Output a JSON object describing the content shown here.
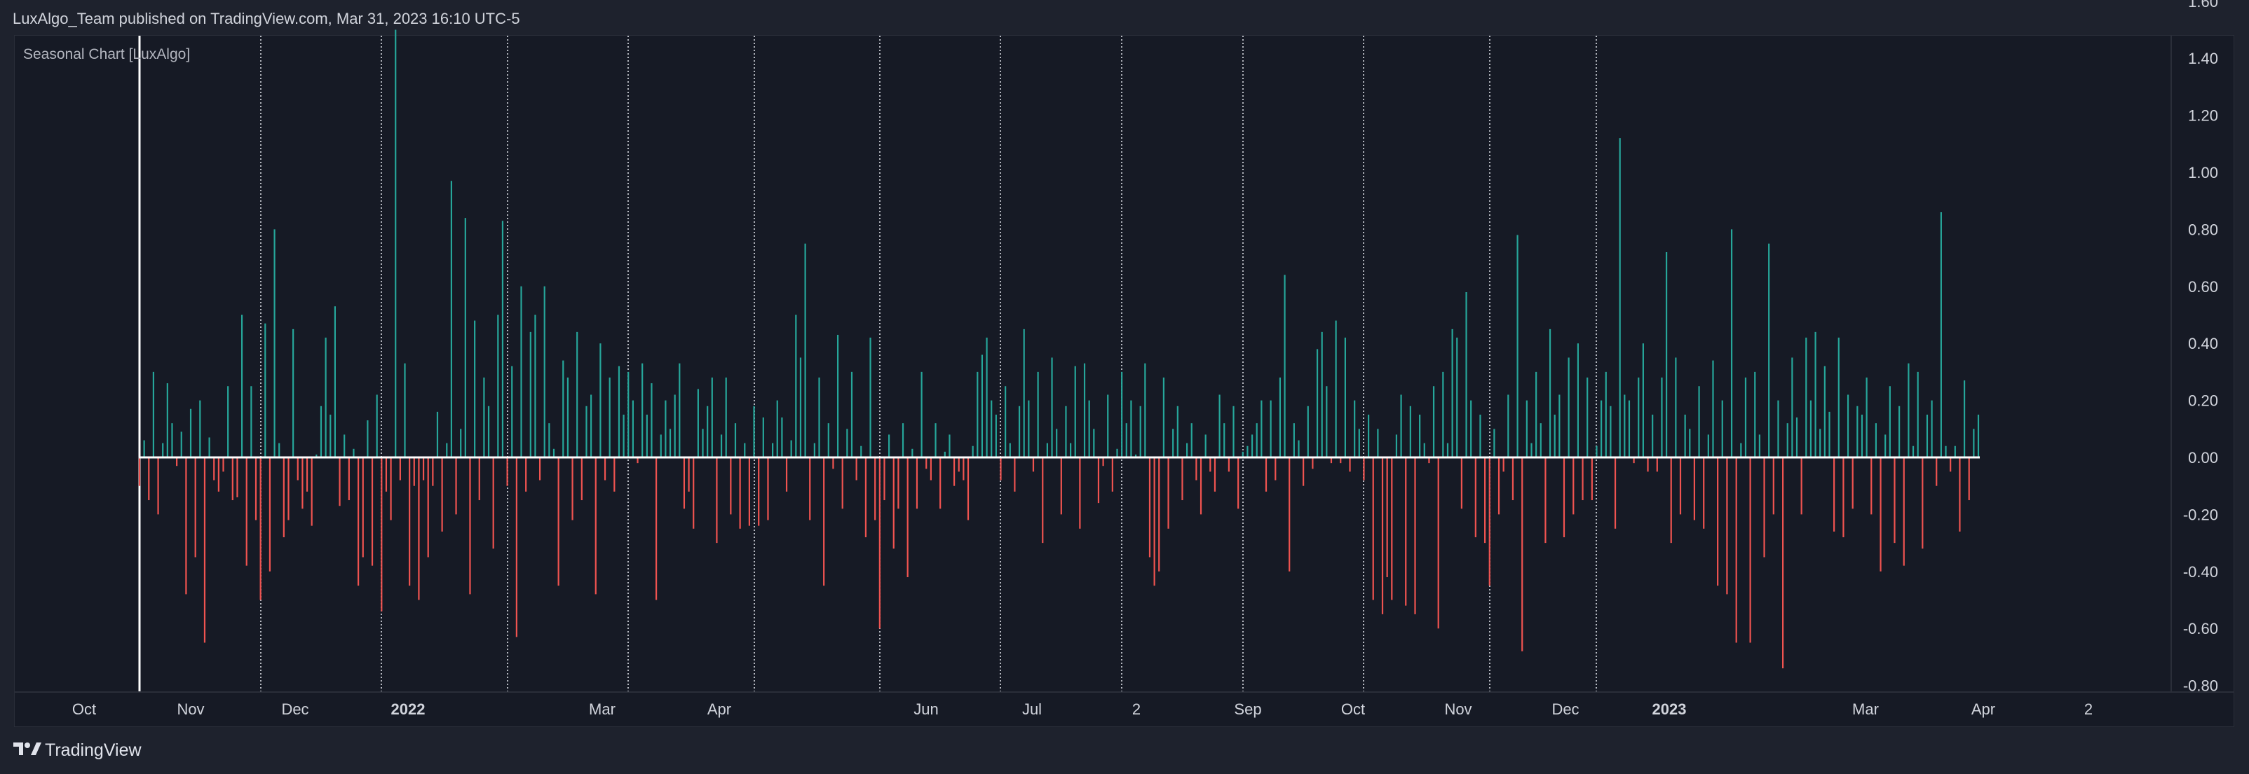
{
  "header": {
    "text": "LuxAlgo_Team published on TradingView.com, Mar 31, 2023 16:10 UTC-5"
  },
  "indicator": {
    "title": "Seasonal Chart [LuxAlgo]"
  },
  "footer": {
    "brand": "TradingView"
  },
  "colors": {
    "positive": "#26a69a",
    "negative": "#ef5350",
    "background": "#161a25",
    "zero_line": "#ffffff",
    "separator": "#d1d4dc"
  },
  "chart_data": {
    "type": "bar",
    "title": "Seasonal Chart [LuxAlgo]",
    "ylim": [
      -0.96,
      1.68
    ],
    "y_ticks": [
      "1.60",
      "1.40",
      "1.20",
      "1.00",
      "0.80",
      "0.60",
      "0.40",
      "0.20",
      "0.00",
      "-0.20",
      "-0.40",
      "-0.60",
      "-0.80"
    ],
    "x_ticks": [
      {
        "label": "Oct",
        "bold": false
      },
      {
        "label": "Nov",
        "bold": false
      },
      {
        "label": "Dec",
        "bold": false
      },
      {
        "label": "2022",
        "bold": true
      },
      {
        "label": "Mar",
        "bold": false
      },
      {
        "label": "Apr",
        "bold": false
      },
      {
        "label": "Jun",
        "bold": false
      },
      {
        "label": "Jul",
        "bold": false
      },
      {
        "label": "2",
        "bold": false
      },
      {
        "label": "Sep",
        "bold": false
      },
      {
        "label": "Oct",
        "bold": false
      },
      {
        "label": "Nov",
        "bold": false
      },
      {
        "label": "Dec",
        "bold": false
      },
      {
        "label": "2023",
        "bold": true
      },
      {
        "label": "Mar",
        "bold": false
      },
      {
        "label": "Apr",
        "bold": false
      },
      {
        "label": "2",
        "bold": false
      }
    ],
    "grid": false,
    "bar_values": [
      -0.1,
      0.06,
      -0.15,
      0.3,
      -0.2,
      0.05,
      0.26,
      0.12,
      -0.03,
      0.09,
      -0.48,
      0.17,
      -0.35,
      0.2,
      -0.65,
      0.07,
      -0.08,
      -0.12,
      -0.05,
      0.25,
      -0.15,
      -0.14,
      0.5,
      -0.38,
      0.25,
      -0.22,
      -0.5,
      0.47,
      -0.4,
      0.8,
      0.05,
      -0.28,
      -0.22,
      0.45,
      -0.08,
      -0.18,
      -0.12,
      -0.24,
      0.01,
      0.18,
      0.42,
      0.15,
      0.53,
      -0.17,
      0.08,
      -0.15,
      0.03,
      -0.45,
      -0.35,
      0.13,
      -0.38,
      0.22,
      -0.54,
      -0.12,
      -0.22,
      1.5,
      -0.08,
      0.33,
      -0.45,
      -0.1,
      -0.5,
      -0.08,
      -0.35,
      -0.1,
      0.16,
      -0.26,
      0.05,
      0.97,
      -0.2,
      0.1,
      0.84,
      -0.48,
      0.48,
      -0.15,
      0.28,
      0.18,
      -0.32,
      0.5,
      0.83,
      -0.1,
      0.32,
      -0.63,
      0.6,
      -0.12,
      0.44,
      0.5,
      -0.08,
      0.6,
      0.12,
      0.03,
      -0.45,
      0.34,
      0.28,
      -0.22,
      0.44,
      -0.15,
      0.18,
      0.22,
      -0.48,
      0.4,
      -0.08,
      0.28,
      -0.12,
      0.32,
      0.15,
      0.3,
      0.2,
      -0.02,
      0.33,
      0.15,
      0.26,
      -0.5,
      0.08,
      0.2,
      0.1,
      0.22,
      0.33,
      -0.18,
      -0.12,
      -0.25,
      0.24,
      0.1,
      0.18,
      0.28,
      -0.3,
      0.08,
      0.28,
      -0.2,
      0.12,
      -0.25,
      0.05,
      -0.24,
      0.18,
      -0.24,
      0.14,
      -0.22,
      0.05,
      0.2,
      0.14,
      -0.12,
      0.06,
      0.5,
      0.35,
      0.75,
      -0.22,
      0.05,
      0.28,
      -0.45,
      0.12,
      -0.04,
      0.43,
      -0.18,
      0.1,
      0.3,
      -0.08,
      0.04,
      -0.28,
      0.42,
      -0.22,
      -0.6,
      -0.15,
      0.08,
      -0.32,
      -0.18,
      0.12,
      -0.42,
      0.03,
      -0.18,
      0.3,
      -0.04,
      -0.08,
      0.12,
      -0.18,
      0.02,
      0.08,
      -0.1,
      -0.05,
      -0.08,
      -0.22,
      0.04,
      0.3,
      0.36,
      0.42,
      0.2,
      0.15,
      -0.08,
      0.25,
      0.05,
      -0.12,
      0.18,
      0.45,
      0.2,
      -0.05,
      0.3,
      -0.3,
      0.05,
      0.35,
      0.1,
      -0.2,
      0.18,
      0.05,
      0.32,
      -0.25,
      0.33,
      0.2,
      0.1,
      -0.16,
      -0.03,
      0.22,
      -0.12,
      0.03,
      0.3,
      0.12,
      0.2,
      0.01,
      0.18,
      0.33,
      -0.35,
      -0.45,
      -0.4,
      0.28,
      -0.25,
      0.1,
      0.18,
      -0.15,
      0.05,
      0.12,
      -0.08,
      -0.2,
      0.08,
      -0.05,
      -0.12,
      0.22,
      0.12,
      -0.05,
      0.18,
      -0.18,
      0.02,
      0.04,
      0.08,
      0.12,
      0.2,
      -0.12,
      0.2,
      -0.08,
      0.28,
      0.64,
      -0.4,
      0.12,
      0.06,
      -0.1,
      0.18,
      -0.04,
      0.38,
      0.44,
      0.25,
      -0.02,
      0.48,
      -0.02,
      0.42,
      -0.05,
      0.2,
      0.1,
      -0.08,
      0.15,
      -0.5,
      0.1,
      -0.55,
      -0.42,
      -0.5,
      0.08,
      0.22,
      -0.52,
      0.18,
      -0.55,
      0.15,
      0.05,
      -0.02,
      0.25,
      -0.6,
      0.3,
      0.05,
      0.45,
      0.42,
      -0.18,
      0.58,
      0.2,
      -0.28,
      0.15,
      -0.3,
      -0.45,
      0.1,
      -0.2,
      -0.05,
      0.22,
      -0.15,
      0.78,
      -0.68,
      0.2,
      0.05,
      0.3,
      0.12,
      -0.3,
      0.45,
      0.15,
      0.22,
      -0.28,
      0.35,
      -0.2,
      0.4,
      -0.15,
      0.28,
      -0.15,
      0.04,
      0.2,
      0.3,
      0.18,
      -0.25,
      1.12,
      0.22,
      0.2,
      -0.02,
      0.28,
      0.4,
      -0.05,
      0.15,
      -0.05,
      0.28,
      0.72,
      -0.3,
      0.35,
      -0.2,
      0.15,
      0.1,
      -0.22,
      0.25,
      -0.25,
      0.08,
      0.34,
      -0.45,
      0.2,
      -0.48,
      0.8,
      -0.65,
      0.05,
      0.28,
      -0.65,
      0.3,
      0.08,
      -0.35,
      0.75,
      -0.2,
      0.2,
      -0.74,
      0.12,
      0.35,
      0.14,
      -0.2,
      0.42,
      0.2,
      0.44,
      0.1,
      0.32,
      0.16,
      -0.26,
      0.42,
      -0.28,
      0.22,
      -0.18,
      0.18,
      0.15,
      0.28,
      -0.2,
      0.12,
      -0.4,
      0.08,
      0.25,
      -0.3,
      0.18,
      -0.38,
      0.33,
      0.04,
      0.3,
      -0.32,
      0.15,
      0.2,
      -0.1,
      0.86,
      0.04,
      -0.05,
      0.04,
      -0.26,
      0.27,
      -0.15,
      0.1,
      0.15
    ],
    "season_separator_indices": [
      0,
      26,
      52,
      79,
      105,
      132,
      159,
      185,
      211,
      237,
      263,
      290,
      313
    ]
  }
}
